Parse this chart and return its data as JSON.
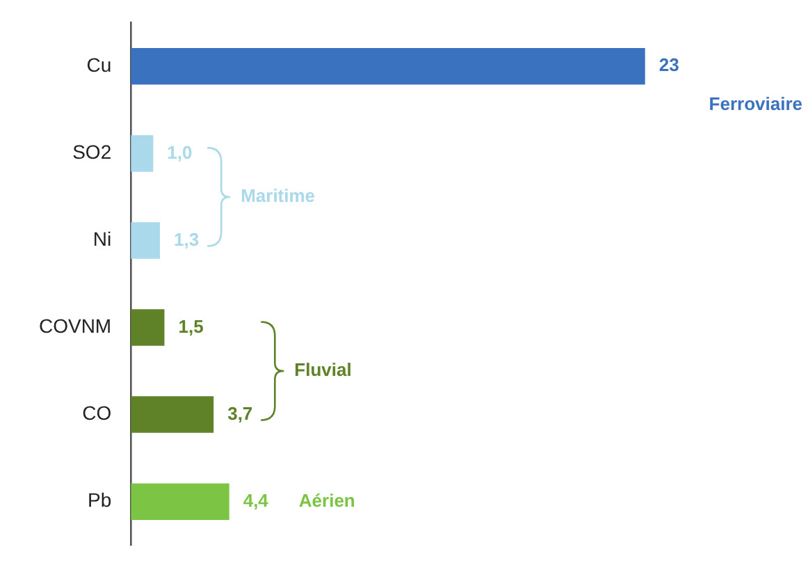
{
  "chart_data": {
    "type": "bar",
    "orientation": "horizontal",
    "categories": [
      "Cu",
      "SO2",
      "Ni",
      "COVNM",
      "CO",
      "Pb"
    ],
    "values": [
      23,
      1.0,
      1.3,
      1.5,
      3.7,
      4.4
    ],
    "colors": [
      "#3b72c0",
      "#a9d9ea",
      "#a9d9ea",
      "#5f8228",
      "#5f8228",
      "#7cc444"
    ],
    "value_labels": [
      "23",
      "1,0",
      "1,3",
      "1,5",
      "3,7",
      "4,4"
    ],
    "tick_labels": "y",
    "grid": false,
    "legend": false,
    "annotations": [
      "Ferroviaire",
      "Maritime",
      "Fluvial",
      "Aérien"
    ]
  }
}
